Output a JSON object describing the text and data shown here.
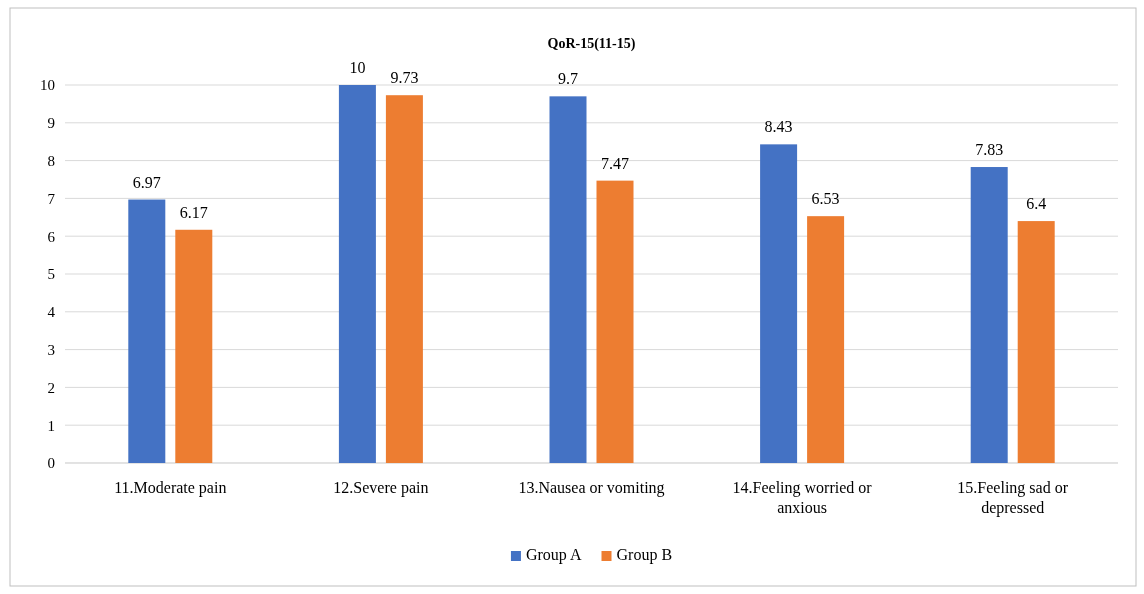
{
  "chart_data": {
    "type": "bar",
    "title": "QoR-15(11-15)",
    "categories": [
      "11.Moderate pain",
      "12.Severe pain",
      "13.Nausea or vomiting",
      "14.Feeling worried or anxious",
      "15.Feeling sad or depressed"
    ],
    "series": [
      {
        "name": "Group A",
        "color": "#4472c4",
        "values": [
          6.97,
          10,
          9.7,
          8.43,
          7.83
        ]
      },
      {
        "name": "Group B",
        "color": "#ed7d31",
        "values": [
          6.17,
          9.73,
          7.47,
          6.53,
          6.4
        ]
      }
    ],
    "ylim": [
      0,
      10
    ],
    "yticks": [
      0,
      1,
      2,
      3,
      4,
      5,
      6,
      7,
      8,
      9,
      10
    ],
    "grid": "y",
    "legend": "bottom",
    "data_labels": true
  }
}
